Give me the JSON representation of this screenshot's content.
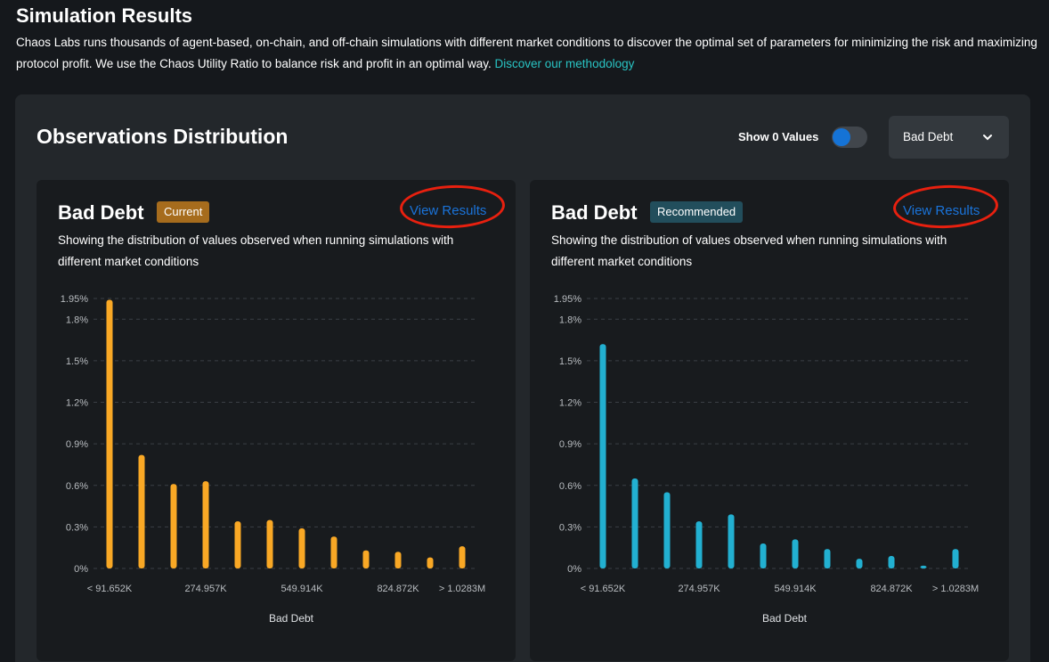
{
  "header": {
    "title": "Simulation Results",
    "intro": "Chaos Labs runs thousands of agent-based, on-chain, and off-chain simulations with different market conditions to discover the optimal set of parameters for minimizing the risk and maximizing protocol profit. We use the Chaos Utility Ratio to balance risk and profit in an optimal way.",
    "methodology_link": "Discover our methodology"
  },
  "panel": {
    "title": "Observations Distribution",
    "toggle_label": "Show 0 Values",
    "select_value": "Bad Debt"
  },
  "cards": [
    {
      "title": "Bad Debt",
      "badge": "Current",
      "badge_color": "#a66c1d",
      "view_results": "View Results",
      "description": "Showing the distribution of values observed when running simulations with different market conditions",
      "bar_color": "#f9a825"
    },
    {
      "title": "Bad Debt",
      "badge": "Recommended",
      "badge_color": "#224e5c",
      "view_results": "View Results",
      "description": "Showing the distribution of values observed when running simulations with different market conditions",
      "bar_color": "#22b0d1"
    }
  ],
  "chart_data": [
    {
      "type": "bar",
      "title": "",
      "xlabel": "Bad Debt",
      "ylabel": "",
      "yticks": [
        "0%",
        "0.3%",
        "0.6%",
        "0.9%",
        "1.2%",
        "1.5%",
        "1.8%",
        "1.95%"
      ],
      "ytick_values": [
        0,
        0.3,
        0.6,
        0.9,
        1.2,
        1.5,
        1.8,
        1.95
      ],
      "ylim": [
        0,
        1.95
      ],
      "xticks": [
        "< 91.652K",
        "274.957K",
        "549.914K",
        "824.872K",
        "> 1.0283M"
      ],
      "xtick_positions": [
        0,
        3,
        6,
        9,
        11
      ],
      "categories": [
        "< 91.652K",
        "",
        "",
        "274.957K",
        "",
        "",
        "549.914K",
        "",
        "",
        "824.872K",
        "",
        "> 1.0283M"
      ],
      "values": [
        1.94,
        0.82,
        0.61,
        0.63,
        0.34,
        0.35,
        0.29,
        0.23,
        0.13,
        0.12,
        0.08,
        0.16
      ],
      "grid": true
    },
    {
      "type": "bar",
      "title": "",
      "xlabel": "Bad Debt",
      "ylabel": "",
      "yticks": [
        "0%",
        "0.3%",
        "0.6%",
        "0.9%",
        "1.2%",
        "1.5%",
        "1.8%",
        "1.95%"
      ],
      "ytick_values": [
        0,
        0.3,
        0.6,
        0.9,
        1.2,
        1.5,
        1.8,
        1.95
      ],
      "ylim": [
        0,
        1.95
      ],
      "xticks": [
        "< 91.652K",
        "274.957K",
        "549.914K",
        "824.872K",
        "> 1.0283M"
      ],
      "xtick_positions": [
        0,
        3,
        6,
        9,
        11
      ],
      "categories": [
        "< 91.652K",
        "",
        "",
        "274.957K",
        "",
        "",
        "549.914K",
        "",
        "",
        "824.872K",
        "",
        "> 1.0283M"
      ],
      "values": [
        1.62,
        0.65,
        0.55,
        0.34,
        0.39,
        0.18,
        0.21,
        0.14,
        0.07,
        0.09,
        0.02,
        0.14
      ],
      "grid": true
    }
  ]
}
